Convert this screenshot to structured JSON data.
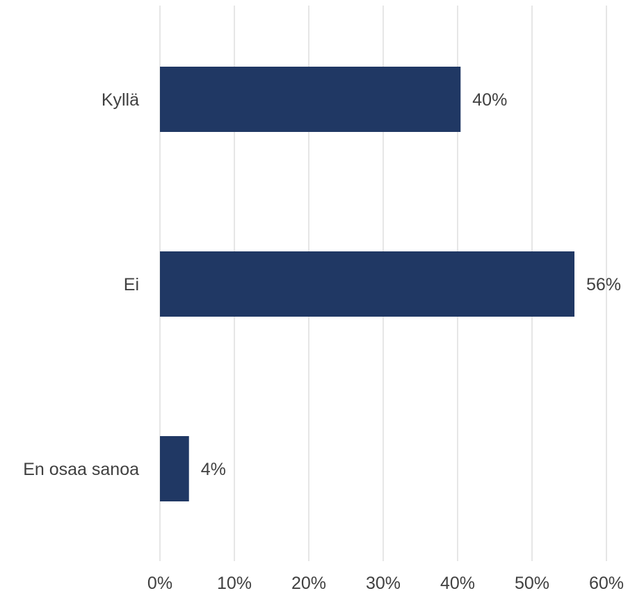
{
  "chart_data": {
    "type": "bar",
    "orientation": "horizontal",
    "categories": [
      "Kyllä",
      "Ei",
      "En osaa sanoa"
    ],
    "values": [
      40.4,
      55.7,
      3.9
    ],
    "value_labels": [
      "40%",
      "56%",
      "4%"
    ],
    "xlim": [
      0,
      60
    ],
    "xticks": [
      0,
      10,
      20,
      30,
      40,
      50,
      60
    ],
    "xtick_labels": [
      "0%",
      "10%",
      "20%",
      "30%",
      "40%",
      "50%",
      "60%"
    ],
    "title": "",
    "xlabel": "",
    "ylabel": "",
    "grid": "vertical",
    "legend": "none",
    "colors": {
      "bar": "#203864",
      "grid": "#d9d9d9",
      "text": "#404040"
    }
  }
}
